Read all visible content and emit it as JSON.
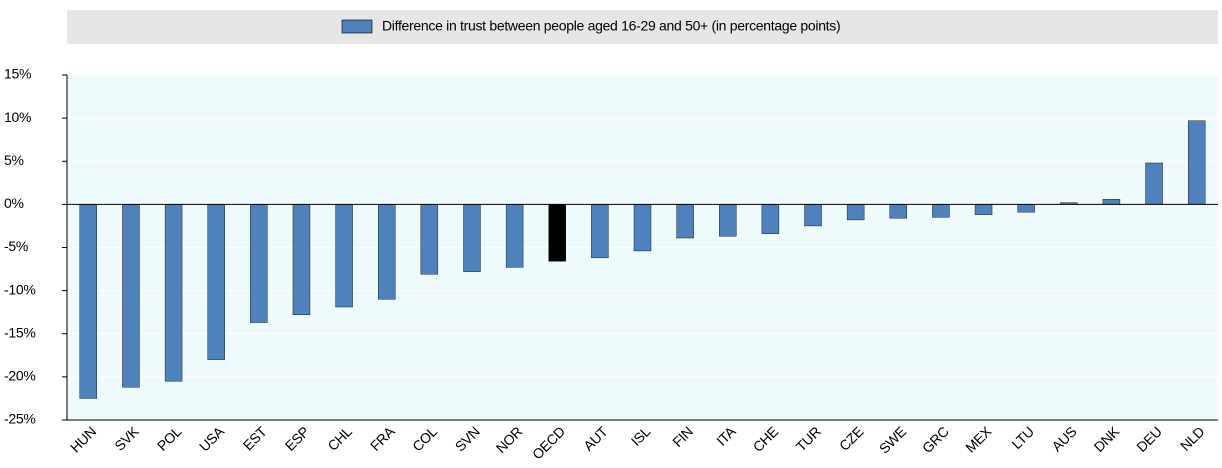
{
  "chart_data": {
    "type": "bar",
    "categories": [
      "HUN",
      "SVK",
      "POL",
      "USA",
      "EST",
      "ESP",
      "CHL",
      "FRA",
      "COL",
      "SVN",
      "NOR",
      "OECD",
      "AUT",
      "ISL",
      "FIN",
      "ITA",
      "CHE",
      "TUR",
      "CZE",
      "SWE",
      "GRC",
      "MEX",
      "LTU",
      "AUS",
      "DNK",
      "DEU",
      "NLD"
    ],
    "series": [
      {
        "name": "Difference in trust between people aged 16-29 and 50+ (in percentage points)",
        "color": "#4f81bd",
        "colors": [
          "#4f81bd",
          "#4f81bd",
          "#4f81bd",
          "#4f81bd",
          "#4f81bd",
          "#4f81bd",
          "#4f81bd",
          "#4f81bd",
          "#4f81bd",
          "#4f81bd",
          "#4f81bd",
          "#000000",
          "#4f81bd",
          "#4f81bd",
          "#4f81bd",
          "#4f81bd",
          "#4f81bd",
          "#4f81bd",
          "#4f81bd",
          "#4f81bd",
          "#4f81bd",
          "#4f81bd",
          "#4f81bd",
          "#4f81bd",
          "#4f81bd",
          "#4f81bd",
          "#4f81bd"
        ],
        "values": [
          -22.5,
          -21.2,
          -20.5,
          -18,
          -13.7,
          -12.8,
          -11.9,
          -11,
          -8.1,
          -7.8,
          -7.3,
          -6.6,
          -6.2,
          -5.4,
          -3.9,
          -3.7,
          -3.4,
          -2.5,
          -1.8,
          -1.6,
          -1.5,
          -1.2,
          -0.9,
          0.2,
          0.6,
          4.8,
          9.7
        ]
      }
    ],
    "ylim": [
      -25,
      15
    ],
    "yticks": [
      {
        "value": -25,
        "label": "-25%"
      },
      {
        "value": -20,
        "label": "-20%"
      },
      {
        "value": -15,
        "label": "-15%"
      },
      {
        "value": -10,
        "label": "-10%"
      },
      {
        "value": -5,
        "label": "-5%"
      },
      {
        "value": 0,
        "label": "0%"
      },
      {
        "value": 5,
        "label": "5%"
      },
      {
        "value": 10,
        "label": "10%"
      },
      {
        "value": 15,
        "label": "15%"
      }
    ],
    "grid": true,
    "legend": "top"
  }
}
